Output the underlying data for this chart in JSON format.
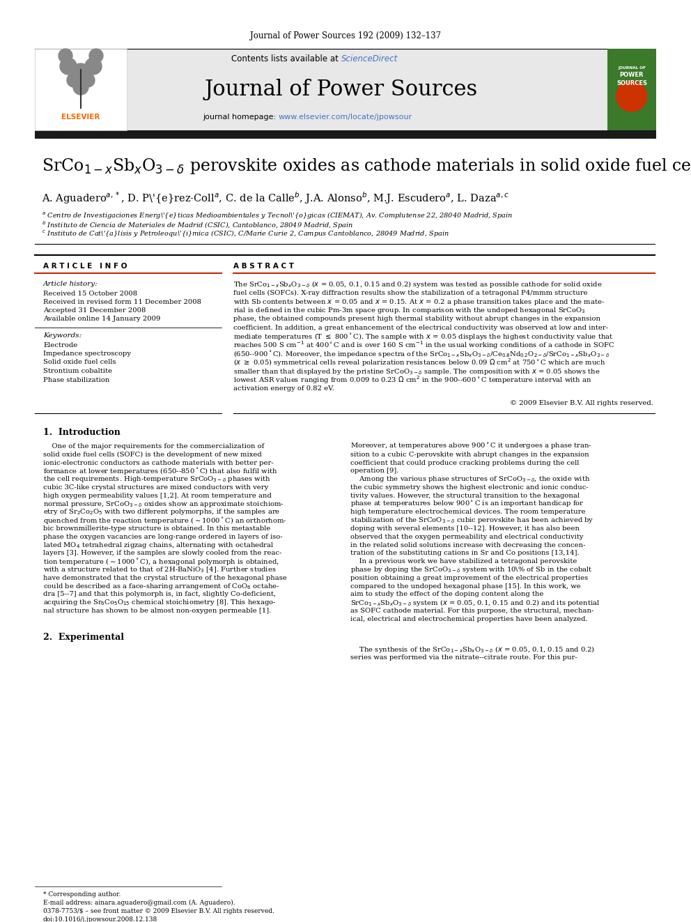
{
  "journal_header": "Journal of Power Sources 192 (2009) 132–137",
  "sciencedirect_color": "#4472c4",
  "journal_name": "Journal of Power Sources",
  "link_color": "#4472c4",
  "header_bg": "#e8e8e8",
  "dark_bar_color": "#1a1a1a",
  "received": "Received 15 October 2008",
  "received_revised": "Received in revised form 11 December 2008",
  "accepted": "Accepted 31 December 2008",
  "available": "Available online 14 January 2009",
  "keywords": [
    "Electrode",
    "Impedance spectroscopy",
    "Solid oxide fuel cells",
    "Strontium cobaltite",
    "Phase stabilization"
  ],
  "copyright": "© 2009 Elsevier B.V. All rights reserved.",
  "footnote_star": "* Corresponding author.",
  "footnote_email": "E-mail address: ainara.aguadero@gmail.com (A. Aguadero).",
  "footnote_issn": "0378-7753/$ – see front matter © 2009 Elsevier B.V. All rights reserved.",
  "footnote_doi": "doi:10.1016/j.jpowsour.2008.12.138",
  "elsevier_color": "#ff6600",
  "bg_white": "#ffffff",
  "text_black": "#000000"
}
